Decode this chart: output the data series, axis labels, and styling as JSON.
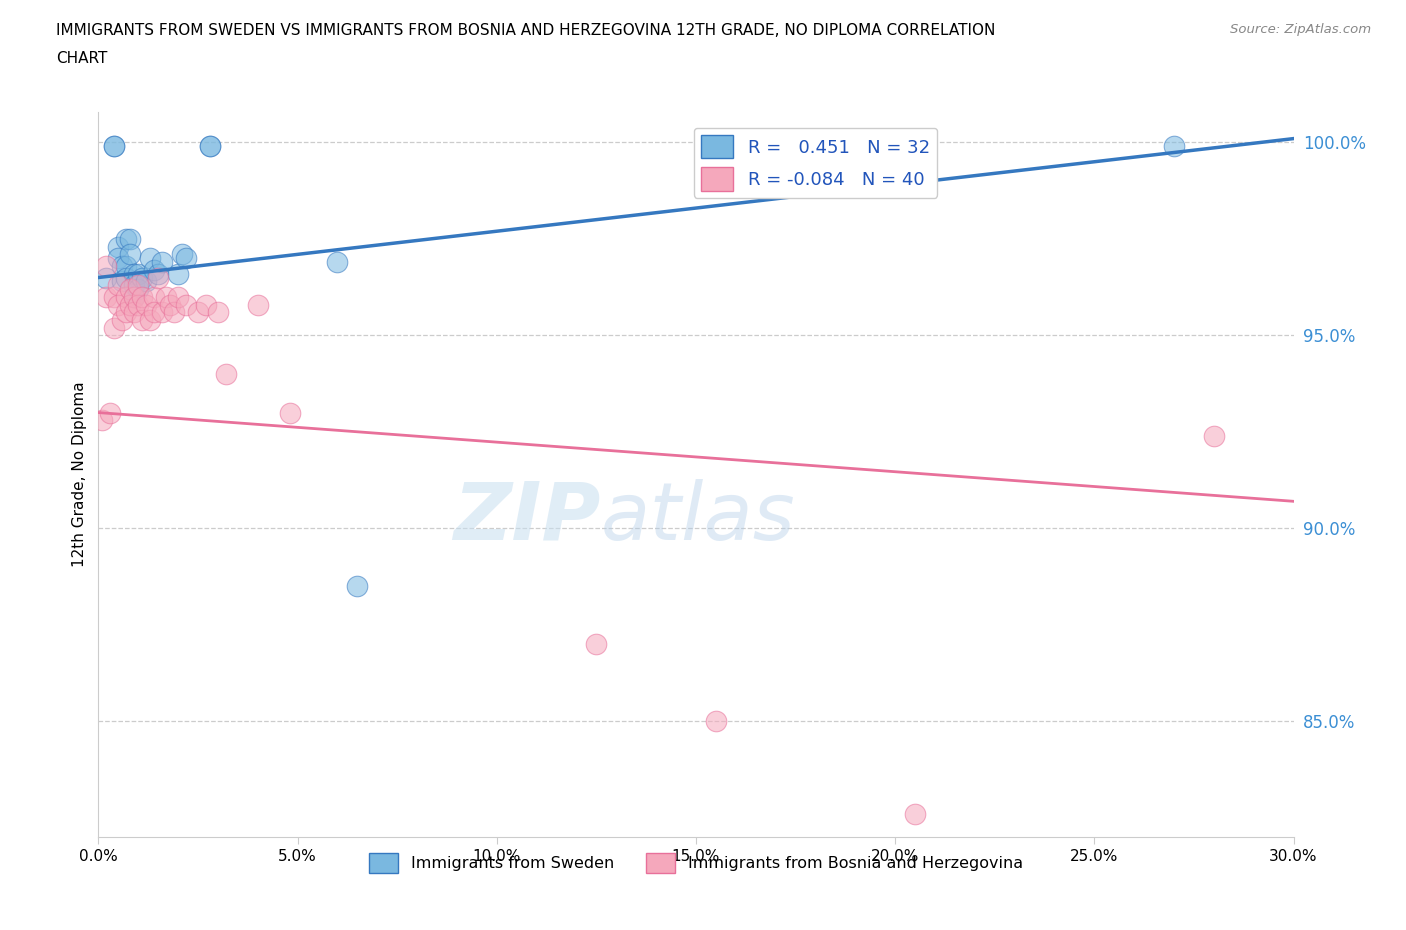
{
  "title_line1": "IMMIGRANTS FROM SWEDEN VS IMMIGRANTS FROM BOSNIA AND HERZEGOVINA 12TH GRADE, NO DIPLOMA CORRELATION",
  "title_line2": "CHART",
  "source": "Source: ZipAtlas.com",
  "ylabel": "12th Grade, No Diploma",
  "legend_label1": "Immigrants from Sweden",
  "legend_label2": "Immigrants from Bosnia and Herzegovina",
  "R1": 0.451,
  "N1": 32,
  "R2": -0.084,
  "N2": 40,
  "xlim": [
    0.0,
    0.3
  ],
  "ylim": [
    0.82,
    1.008
  ],
  "xticks": [
    0.0,
    0.05,
    0.1,
    0.15,
    0.2,
    0.25,
    0.3
  ],
  "yticks": [
    0.85,
    0.9,
    0.95,
    1.0
  ],
  "color_sweden": "#7ab8e0",
  "color_bosnia": "#f5a8bc",
  "color_trend_sweden": "#3578c0",
  "color_trend_bosnia": "#e8709a",
  "watermark_part1": "ZIP",
  "watermark_part2": "atlas",
  "sweden_x": [
    0.002,
    0.004,
    0.004,
    0.005,
    0.005,
    0.006,
    0.006,
    0.007,
    0.007,
    0.007,
    0.008,
    0.008,
    0.009,
    0.009,
    0.009,
    0.01,
    0.01,
    0.011,
    0.012,
    0.013,
    0.014,
    0.015,
    0.016,
    0.02,
    0.021,
    0.022,
    0.028,
    0.028,
    0.06,
    0.065,
    0.162,
    0.27
  ],
  "sweden_y": [
    0.965,
    0.999,
    0.999,
    0.973,
    0.97,
    0.968,
    0.964,
    0.975,
    0.968,
    0.965,
    0.975,
    0.971,
    0.966,
    0.963,
    0.96,
    0.966,
    0.962,
    0.965,
    0.964,
    0.97,
    0.967,
    0.966,
    0.969,
    0.966,
    0.971,
    0.97,
    0.999,
    0.999,
    0.969,
    0.885,
    0.999,
    0.999
  ],
  "bosnia_x": [
    0.001,
    0.002,
    0.002,
    0.003,
    0.004,
    0.004,
    0.005,
    0.005,
    0.006,
    0.007,
    0.007,
    0.008,
    0.008,
    0.009,
    0.009,
    0.01,
    0.01,
    0.011,
    0.011,
    0.012,
    0.013,
    0.014,
    0.014,
    0.015,
    0.016,
    0.017,
    0.018,
    0.019,
    0.02,
    0.022,
    0.025,
    0.027,
    0.03,
    0.032,
    0.04,
    0.048,
    0.125,
    0.155,
    0.205,
    0.28
  ],
  "bosnia_y": [
    0.928,
    0.968,
    0.96,
    0.93,
    0.96,
    0.952,
    0.963,
    0.958,
    0.954,
    0.96,
    0.956,
    0.962,
    0.958,
    0.96,
    0.956,
    0.963,
    0.958,
    0.96,
    0.954,
    0.958,
    0.954,
    0.96,
    0.956,
    0.965,
    0.956,
    0.96,
    0.958,
    0.956,
    0.96,
    0.958,
    0.956,
    0.958,
    0.956,
    0.94,
    0.958,
    0.93,
    0.87,
    0.85,
    0.826,
    0.924
  ],
  "trend_sweden_x0": 0.0,
  "trend_sweden_y0": 0.965,
  "trend_sweden_x1": 0.3,
  "trend_sweden_y1": 1.001,
  "trend_bosnia_x0": 0.0,
  "trend_bosnia_y0": 0.93,
  "trend_bosnia_x1": 0.3,
  "trend_bosnia_y1": 0.907
}
